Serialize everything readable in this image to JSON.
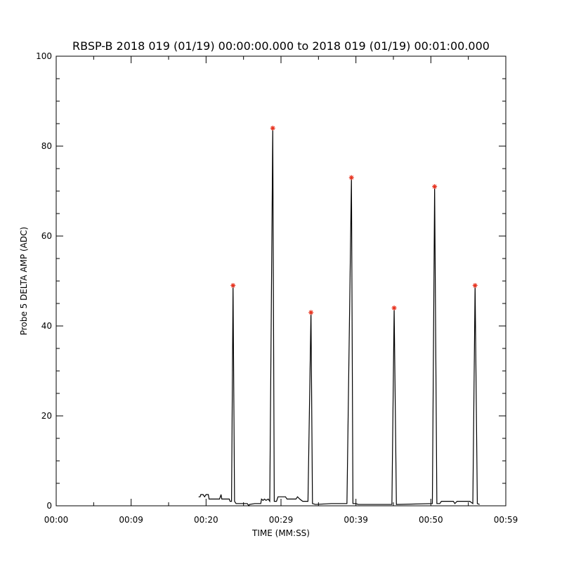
{
  "chart_data": {
    "type": "line",
    "title": "RBSP-B 2018 019 (01/19) 00:00:00.000 to 2018 019 (01/19) 00:01:00.000",
    "xlabel": "TIME (MM:SS)",
    "ylabel": "Probe 5 DELTA AMP (ADC)",
    "xlim": [
      0,
      60
    ],
    "ylim": [
      0,
      100
    ],
    "x_ticks": [
      {
        "value": 0,
        "label": "00:00"
      },
      {
        "value": 10,
        "label": "00:09"
      },
      {
        "value": 20,
        "label": "00:20"
      },
      {
        "value": 30,
        "label": "00:29"
      },
      {
        "value": 40,
        "label": "00:39"
      },
      {
        "value": 50,
        "label": "00:50"
      },
      {
        "value": 60,
        "label": "00:59"
      }
    ],
    "y_ticks": [
      {
        "value": 0,
        "label": "0"
      },
      {
        "value": 20,
        "label": "20"
      },
      {
        "value": 40,
        "label": "40"
      },
      {
        "value": 60,
        "label": "60"
      },
      {
        "value": 80,
        "label": "80"
      },
      {
        "value": 100,
        "label": "100"
      }
    ],
    "grid": false,
    "series": [
      {
        "color": "#000000",
        "points": [
          [
            19.0,
            2
          ],
          [
            19.2,
            2
          ],
          [
            19.3,
            2.5
          ],
          [
            19.6,
            2.5
          ],
          [
            19.8,
            2
          ],
          [
            20.0,
            2.5
          ],
          [
            20.3,
            2.5
          ],
          [
            20.4,
            1.5
          ],
          [
            21.0,
            1.5
          ],
          [
            21.8,
            1.5
          ],
          [
            22.0,
            2.5
          ],
          [
            22.1,
            1.5
          ],
          [
            23.1,
            1.5
          ],
          [
            23.2,
            1
          ],
          [
            23.4,
            1
          ],
          [
            23.6,
            49
          ],
          [
            23.8,
            1
          ],
          [
            24.0,
            0.5
          ],
          [
            25.5,
            0.5
          ],
          [
            25.7,
            0
          ],
          [
            25.8,
            0.3
          ],
          [
            26.5,
            0.5
          ],
          [
            27.3,
            0.5
          ],
          [
            27.4,
            1.5
          ],
          [
            27.6,
            1.2
          ],
          [
            27.8,
            1.5
          ],
          [
            28.0,
            1.2
          ],
          [
            28.3,
            1.5
          ],
          [
            28.5,
            1
          ],
          [
            28.9,
            84
          ],
          [
            29.1,
            1
          ],
          [
            29.4,
            1
          ],
          [
            29.6,
            2
          ],
          [
            30.6,
            2
          ],
          [
            30.8,
            1.5
          ],
          [
            32.0,
            1.5
          ],
          [
            32.2,
            2
          ],
          [
            32.5,
            1.5
          ],
          [
            32.9,
            1
          ],
          [
            33.6,
            1
          ],
          [
            34.0,
            43
          ],
          [
            34.2,
            0.5
          ],
          [
            34.6,
            0.3
          ],
          [
            36.7,
            0.5
          ],
          [
            37.5,
            0.5
          ],
          [
            38.8,
            0.5
          ],
          [
            39.4,
            73
          ],
          [
            39.6,
            0.5
          ],
          [
            40.0,
            0.5
          ],
          [
            40.3,
            0.3
          ],
          [
            44.8,
            0.3
          ],
          [
            45.1,
            44
          ],
          [
            45.4,
            0.3
          ],
          [
            50.2,
            0.5
          ],
          [
            50.5,
            71
          ],
          [
            50.8,
            0.5
          ],
          [
            51.2,
            0.5
          ],
          [
            51.4,
            1
          ],
          [
            53.0,
            1
          ],
          [
            53.2,
            0.5
          ],
          [
            53.5,
            1
          ],
          [
            55.2,
            1
          ],
          [
            55.6,
            0.5
          ],
          [
            55.9,
            49
          ],
          [
            56.2,
            0.5
          ],
          [
            56.5,
            0.3
          ]
        ]
      }
    ],
    "peaks": {
      "color": "#e8321e",
      "marker": "asterisk",
      "points": [
        [
          23.6,
          49
        ],
        [
          28.9,
          84
        ],
        [
          34.0,
          43
        ],
        [
          39.4,
          73
        ],
        [
          45.1,
          44
        ],
        [
          50.5,
          71
        ],
        [
          55.9,
          49
        ]
      ]
    }
  }
}
